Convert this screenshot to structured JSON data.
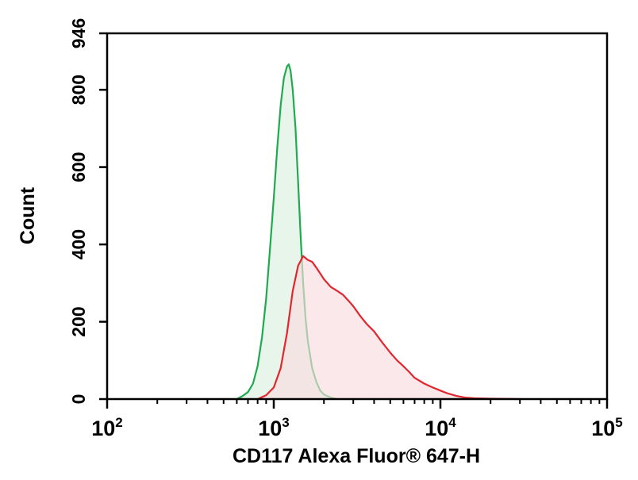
{
  "chart_data": {
    "type": "area",
    "xlabel": "CD117 Alexa Fluor® 647-H",
    "ylabel": "Count",
    "x_scale": "log",
    "xlim": [
      100,
      100000
    ],
    "ylim": [
      0,
      946
    ],
    "x_ticks": [
      {
        "value": 100,
        "base": "10",
        "exp": "2"
      },
      {
        "value": 1000,
        "base": "10",
        "exp": "3"
      },
      {
        "value": 10000,
        "base": "10",
        "exp": "4"
      },
      {
        "value": 100000,
        "base": "10",
        "exp": "5"
      }
    ],
    "y_ticks": [
      {
        "value": 0,
        "label": "0"
      },
      {
        "value": 200,
        "label": "200"
      },
      {
        "value": 400,
        "label": "400"
      },
      {
        "value": 600,
        "label": "600"
      },
      {
        "value": 800,
        "label": "800"
      },
      {
        "value": 946,
        "label": "946"
      }
    ],
    "grid": false,
    "series": [
      {
        "color": "#1faa4f",
        "fill": "#dcefe0",
        "points": [
          [
            600,
            0
          ],
          [
            650,
            8
          ],
          [
            700,
            18
          ],
          [
            750,
            40
          ],
          [
            800,
            85
          ],
          [
            850,
            160
          ],
          [
            900,
            260
          ],
          [
            950,
            390
          ],
          [
            1000,
            520
          ],
          [
            1050,
            650
          ],
          [
            1100,
            760
          ],
          [
            1150,
            830
          ],
          [
            1200,
            860
          ],
          [
            1230,
            866
          ],
          [
            1260,
            850
          ],
          [
            1300,
            800
          ],
          [
            1350,
            700
          ],
          [
            1400,
            560
          ],
          [
            1450,
            420
          ],
          [
            1500,
            300
          ],
          [
            1550,
            210
          ],
          [
            1600,
            150
          ],
          [
            1700,
            80
          ],
          [
            1800,
            45
          ],
          [
            1900,
            22
          ],
          [
            2000,
            12
          ],
          [
            2200,
            4
          ],
          [
            2400,
            0
          ]
        ]
      },
      {
        "color": "#e2262e",
        "fill": "#f9dcde",
        "points": [
          [
            800,
            0
          ],
          [
            900,
            10
          ],
          [
            1000,
            30
          ],
          [
            1100,
            80
          ],
          [
            1200,
            170
          ],
          [
            1300,
            280
          ],
          [
            1400,
            345
          ],
          [
            1500,
            370
          ],
          [
            1600,
            360
          ],
          [
            1700,
            355
          ],
          [
            1800,
            340
          ],
          [
            1900,
            325
          ],
          [
            2000,
            310
          ],
          [
            2200,
            290
          ],
          [
            2400,
            280
          ],
          [
            2600,
            270
          ],
          [
            2800,
            255
          ],
          [
            3000,
            240
          ],
          [
            3300,
            215
          ],
          [
            3600,
            195
          ],
          [
            4000,
            175
          ],
          [
            4500,
            145
          ],
          [
            5000,
            120
          ],
          [
            5500,
            100
          ],
          [
            6000,
            85
          ],
          [
            6500,
            70
          ],
          [
            7000,
            55
          ],
          [
            8000,
            40
          ],
          [
            9000,
            30
          ],
          [
            10000,
            22
          ],
          [
            11000,
            15
          ],
          [
            12500,
            8
          ],
          [
            14000,
            4
          ],
          [
            16000,
            2
          ],
          [
            20000,
            1
          ],
          [
            30000,
            0
          ]
        ]
      }
    ]
  }
}
